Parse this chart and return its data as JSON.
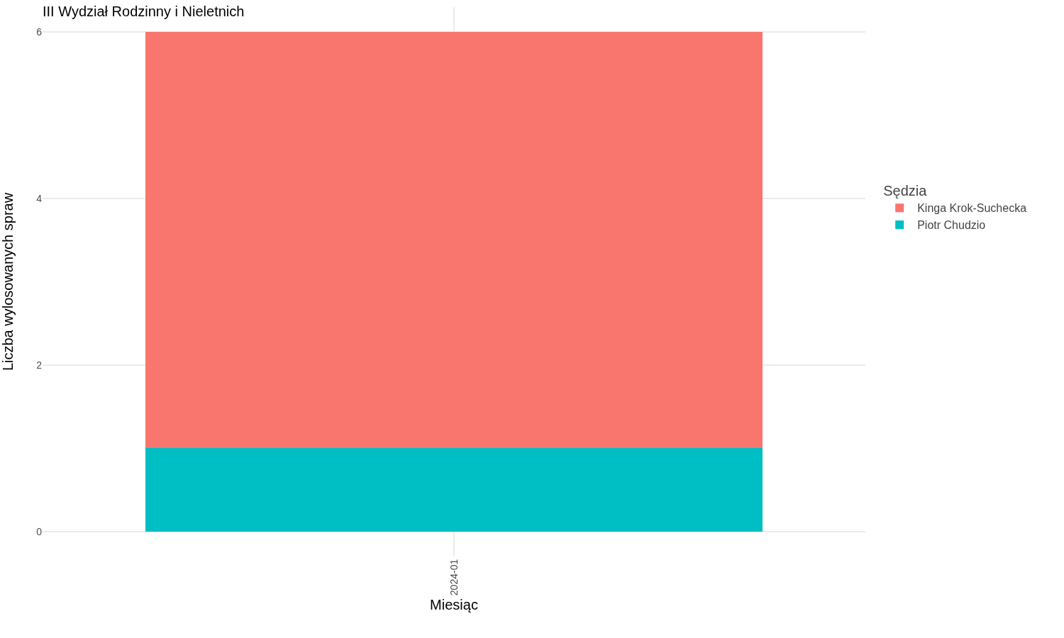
{
  "chart_data": {
    "type": "bar",
    "title": "III Wydział Rodzinny i Nieletnich",
    "xlabel": "Miesiąc",
    "ylabel": "Liczba wylosowanych spraw",
    "legend_title": "Sędzia",
    "categories": [
      "2024-01"
    ],
    "stacked": true,
    "series": [
      {
        "name": "Piotr Chudzio",
        "color": "#00bfc4",
        "values": [
          1
        ]
      },
      {
        "name": "Kinga Krok-Suchecka",
        "color": "#f8766d",
        "values": [
          5
        ]
      }
    ],
    "ylim": [
      -0.3,
      6.3
    ],
    "yticks": [
      0,
      2,
      4,
      6
    ],
    "grid": true,
    "legend": "right"
  }
}
